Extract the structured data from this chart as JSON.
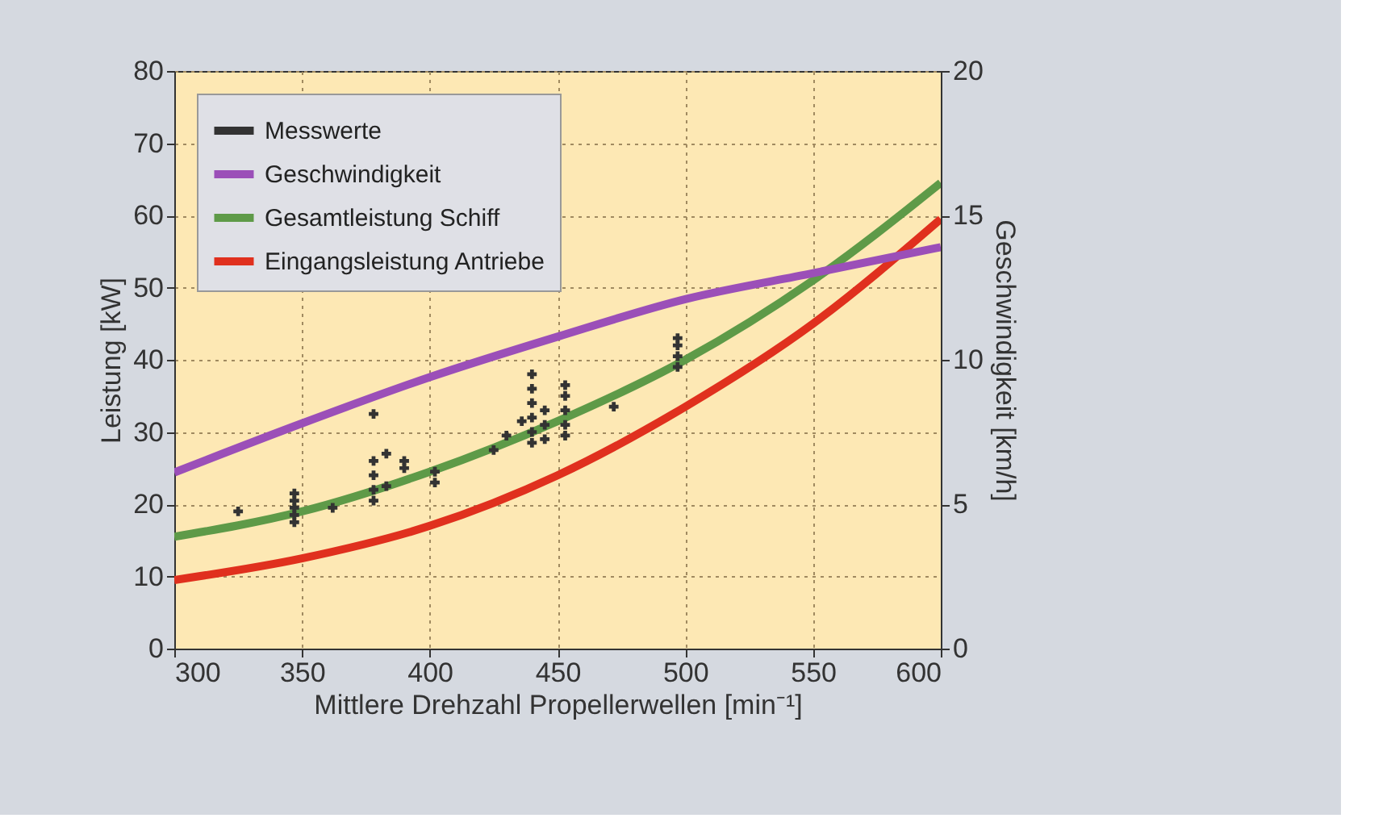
{
  "chart_data": {
    "type": "line",
    "xlabel": "Mittlere Drehzahl Propellerwellen [min⁻¹]",
    "ylabel": "Leistung [kW]",
    "y2label": "Geschwindigkeit [km/h]",
    "xlim": [
      300,
      600
    ],
    "xticks": [
      300,
      350,
      400,
      450,
      500,
      550,
      600
    ],
    "ylim": [
      0,
      80
    ],
    "yticks": [
      0,
      10,
      20,
      30,
      40,
      50,
      60,
      70,
      80
    ],
    "y2lim": [
      0,
      20
    ],
    "y2ticks": [
      0,
      5,
      10,
      15,
      20
    ],
    "grid": true,
    "legend": "top left",
    "series": [
      {
        "name": "Messwerte",
        "type": "scatter",
        "color": "#333333",
        "x": [
          325,
          347,
          347,
          347,
          347,
          347,
          362,
          378,
          378,
          378,
          378,
          378,
          383,
          383,
          390,
          390,
          402,
          402,
          425,
          430,
          436,
          440,
          440,
          440,
          440,
          440,
          440,
          445,
          445,
          445,
          453,
          453,
          453,
          453,
          453,
          472,
          497,
          497,
          497,
          497
        ],
        "values": [
          19,
          17.5,
          18.5,
          19.5,
          20.5,
          21.5,
          19.5,
          32.5,
          20.5,
          22,
          24,
          26,
          22.5,
          27,
          25,
          26,
          23,
          24.5,
          27.5,
          29.5,
          31.5,
          28.5,
          30,
          32,
          34,
          36,
          38,
          29,
          31,
          33,
          29.5,
          31,
          33,
          35,
          36.5,
          33.5,
          39,
          40.5,
          42,
          43
        ]
      },
      {
        "name": "Geschwindigkeit",
        "axis": "y2",
        "color": "#9b4fb8",
        "x": [
          300,
          350,
          400,
          450,
          500,
          550,
          600
        ],
        "values": [
          6.1,
          7.8,
          9.4,
          10.8,
          12.1,
          13.0,
          13.9
        ]
      },
      {
        "name": "Gesamtleistung Schiff",
        "color": "#5e9a48",
        "x": [
          300,
          350,
          400,
          450,
          500,
          550,
          600
        ],
        "values": [
          15.5,
          19,
          24.5,
          31.5,
          40,
          51,
          64.5
        ]
      },
      {
        "name": "Eingangsleistung Antriebe",
        "color": "#e0301e",
        "x": [
          300,
          350,
          400,
          450,
          500,
          550,
          600
        ],
        "values": [
          9.5,
          12.5,
          17,
          24,
          33.5,
          45,
          59.5
        ]
      }
    ]
  }
}
